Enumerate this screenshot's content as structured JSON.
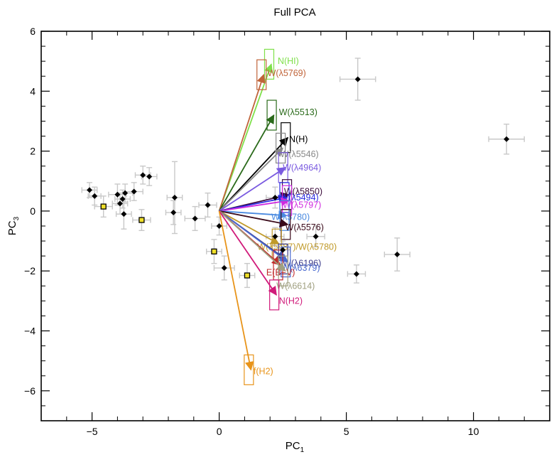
{
  "chart_data": {
    "type": "scatter",
    "title": "Full PCA",
    "xlabel": "PC",
    "xlabel_sub": "1",
    "ylabel": "PC",
    "ylabel_sub": "3",
    "xlim": [
      -7,
      13
    ],
    "ylim": [
      -7,
      6
    ],
    "x_ticks": [
      -5,
      0,
      5,
      10
    ],
    "x_tick_labels": [
      "−5",
      "0",
      "5",
      "10"
    ],
    "y_ticks": [
      -6,
      -4,
      -2,
      0,
      2,
      4,
      6
    ],
    "y_tick_labels": [
      "−6",
      "−4",
      "−2",
      "0",
      "2",
      "4",
      "6"
    ],
    "grid": false,
    "series": [
      {
        "marker": "diamond",
        "color": "#000000",
        "points": [
          {
            "x": -5.1,
            "y": 0.7,
            "xerr": 0.3,
            "yerr": 0.25
          },
          {
            "x": -4.9,
            "y": 0.5,
            "xerr": 0.25,
            "yerr": 0.3
          },
          {
            "x": -4.0,
            "y": 0.55,
            "xerr": 0.35,
            "yerr": 0.35
          },
          {
            "x": -3.8,
            "y": 0.4,
            "xerr": 0.3,
            "yerr": 0.3
          },
          {
            "x": -3.7,
            "y": 0.6,
            "xerr": 0.3,
            "yerr": 0.3
          },
          {
            "x": -3.9,
            "y": 0.25,
            "xerr": 0.3,
            "yerr": 0.35
          },
          {
            "x": -3.75,
            "y": -0.1,
            "xerr": 0.3,
            "yerr": 0.5
          },
          {
            "x": -3.35,
            "y": 0.65,
            "xerr": 0.35,
            "yerr": 0.3
          },
          {
            "x": -3.0,
            "y": 1.2,
            "xerr": 0.3,
            "yerr": 0.3
          },
          {
            "x": -2.75,
            "y": 1.15,
            "xerr": 0.3,
            "yerr": 0.3
          },
          {
            "x": -1.75,
            "y": 0.45,
            "xerr": 0.3,
            "yerr": 1.2
          },
          {
            "x": -1.8,
            "y": -0.05,
            "xerr": 0.3,
            "yerr": 0.4
          },
          {
            "x": -0.95,
            "y": -0.25,
            "xerr": 0.4,
            "yerr": 0.4
          },
          {
            "x": -0.45,
            "y": 0.2,
            "xerr": 0.35,
            "yerr": 0.4
          },
          {
            "x": 0.0,
            "y": -0.5,
            "xerr": 0.3,
            "yerr": 0.3
          },
          {
            "x": 0.2,
            "y": -1.9,
            "xerr": 0.4,
            "yerr": 0.4
          },
          {
            "x": 5.45,
            "y": 4.4,
            "xerr": 0.7,
            "yerr": 0.7
          },
          {
            "x": 11.3,
            "y": 2.4,
            "xerr": 0.7,
            "yerr": 0.5
          },
          {
            "x": 7.0,
            "y": -1.45,
            "xerr": 0.5,
            "yerr": 0.55
          },
          {
            "x": 5.4,
            "y": -2.1,
            "xerr": 0.35,
            "yerr": 0.3
          },
          {
            "x": 3.8,
            "y": -0.85,
            "xerr": 0.35,
            "yerr": 0.35
          },
          {
            "x": 2.2,
            "y": 0.45,
            "xerr": 0.35,
            "yerr": 0.35
          },
          {
            "x": 2.2,
            "y": -0.85,
            "xerr": 0.35,
            "yerr": 0.3
          },
          {
            "x": 2.5,
            "y": -1.3,
            "xerr": 0.3,
            "yerr": 0.3
          }
        ]
      },
      {
        "marker": "square",
        "color": "#f0e02a",
        "points": [
          {
            "x": -4.55,
            "y": 0.15,
            "xerr": 0.35,
            "yerr": 0.35
          },
          {
            "x": -3.05,
            "y": -0.3,
            "xerr": 0.35,
            "yerr": 0.35
          },
          {
            "x": -0.2,
            "y": -1.35,
            "xerr": 0.3,
            "yerr": 0.4
          },
          {
            "x": 1.1,
            "y": -2.15,
            "xerr": 0.3,
            "yerr": 0.4
          }
        ]
      }
    ],
    "vectors": [
      {
        "label": "N(HI)",
        "x": 2.05,
        "y": 4.9,
        "color": "#7fe04a",
        "lx": 2.3,
        "ly": 5.0
      },
      {
        "label": "W(λ5769)",
        "x": 1.75,
        "y": 4.55,
        "color": "#c0643a",
        "lx": 1.9,
        "ly": 4.6
      },
      {
        "label": "W(λ5513)",
        "x": 2.15,
        "y": 3.2,
        "color": "#2a6a1a",
        "lx": 2.35,
        "ly": 3.3
      },
      {
        "label": "N(H)",
        "x": 2.7,
        "y": 2.45,
        "color": "#000000",
        "lx": 2.75,
        "ly": 2.4
      },
      {
        "label": "W(λ5546)",
        "x": 2.5,
        "y": 2.1,
        "color": "#888888",
        "lx": 2.4,
        "ly": 1.9
      },
      {
        "label": "W(λ4964)",
        "x": 2.6,
        "y": 1.45,
        "color": "#7a5ae0",
        "lx": 2.5,
        "ly": 1.45
      },
      {
        "label": "W(λ5850)",
        "x": 2.75,
        "y": 0.55,
        "color": "#3a0a3a",
        "lx": 2.55,
        "ly": 0.65
      },
      {
        "label": "W(λ5494)",
        "x": 2.65,
        "y": 0.45,
        "color": "#2a2ae0",
        "lx": 2.4,
        "ly": 0.45
      },
      {
        "label": "W(λ5797)",
        "x": 2.75,
        "y": 0.35,
        "color": "#d02ae0",
        "lx": 2.5,
        "ly": 0.2
      },
      {
        "label": "W(λ5780)",
        "x": 2.65,
        "y": -0.15,
        "color": "#4a8ae0",
        "lx": 2.05,
        "ly": -0.2
      },
      {
        "label": "W(λ5576)",
        "x": 2.7,
        "y": -0.45,
        "color": "#3a0a1a",
        "lx": 2.6,
        "ly": -0.55
      },
      {
        "label": "W(λ5487)/W(λ5780)",
        "x": 2.35,
        "y": -1.1,
        "color": "#c09a2a",
        "lx": 1.5,
        "ly": -1.2
      },
      {
        "label": "W(λ6196)",
        "x": 2.6,
        "y": -1.6,
        "color": "#3a3a8a",
        "lx": 2.5,
        "ly": -1.75
      },
      {
        "label": "W(λ6379)",
        "x": 2.7,
        "y": -1.7,
        "color": "#4a6ad0",
        "lx": 2.45,
        "ly": -1.9
      },
      {
        "label": "E(B−V)",
        "x": 2.4,
        "y": -1.8,
        "color": "#c02a2a",
        "lx": 1.85,
        "ly": -2.05
      },
      {
        "label": "W(λ6614)",
        "x": 2.6,
        "y": -2.0,
        "color": "#a0a080",
        "lx": 2.25,
        "ly": -2.5
      },
      {
        "label": "N(H2)",
        "x": 2.25,
        "y": -2.8,
        "color": "#d01a7a",
        "lx": 2.35,
        "ly": -3.0
      },
      {
        "label": "f(H2)",
        "x": 1.25,
        "y": -5.3,
        "color": "#e8941a",
        "lx": 1.35,
        "ly": -5.35
      }
    ]
  }
}
